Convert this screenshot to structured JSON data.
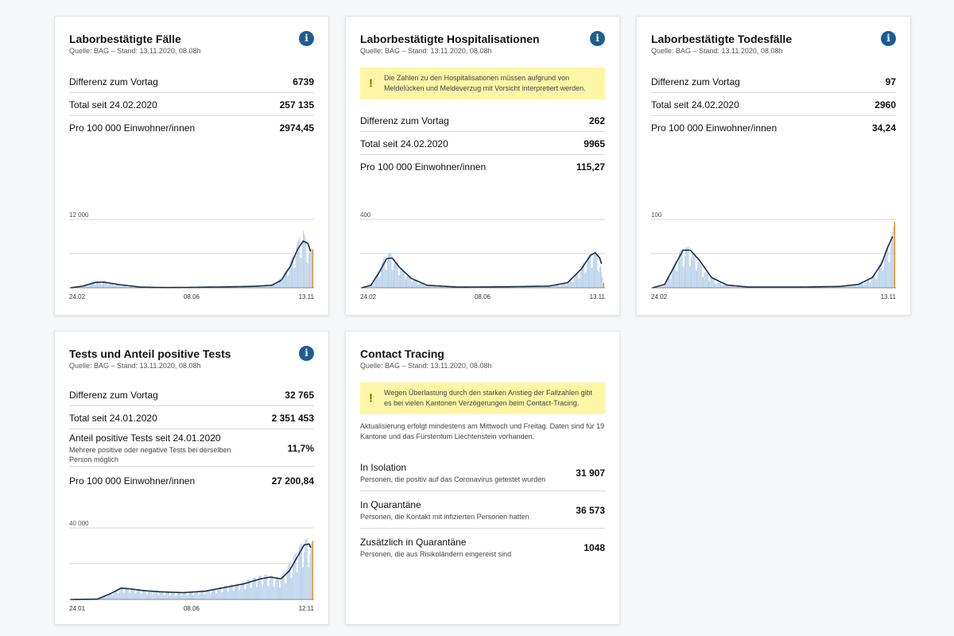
{
  "colors": {
    "bar": "#b9d1ea",
    "line": "#1c2e45",
    "latest": "#e89324",
    "info": "#1d5c91",
    "note": "#fdf6a6"
  },
  "cards": [
    {
      "title": "Laborbestätigte Fälle",
      "source": "Quelle: BAG – Stand: 13.11.2020, 08.08h",
      "has_info": true,
      "rows": [
        {
          "label": "Differenz zum Vortag",
          "value": "6739"
        },
        {
          "label": "Total seit 24.02.2020",
          "value": "257 135"
        },
        {
          "label": "Pro 100 000 Einwohner/innen",
          "value": "2974,45"
        }
      ]
    },
    {
      "title": "Laborbestätigte Hospitalisationen",
      "source": "Quelle: BAG – Stand: 13.11.2020, 08.08h",
      "has_info": true,
      "note": "Die Zahlen zu den Hospitalisationen müssen aufgrund von Meldelücken und Meldeverzug mit Vorsicht interpretiert werden.",
      "rows": [
        {
          "label": "Differenz zum Vortag",
          "value": "262"
        },
        {
          "label": "Total seit 24.02.2020",
          "value": "9965"
        },
        {
          "label": "Pro 100 000 Einwohner/innen",
          "value": "115,27"
        }
      ]
    },
    {
      "title": "Laborbestätigte Todesfälle",
      "source": "Quelle: BAG – Stand: 13.11.2020, 08.08h",
      "has_info": true,
      "rows": [
        {
          "label": "Differenz zum Vortag",
          "value": "97"
        },
        {
          "label": "Total seit 24.02.2020",
          "value": "2960"
        },
        {
          "label": "Pro 100 000 Einwohner/innen",
          "value": "34,24"
        }
      ]
    },
    {
      "title": "Tests und Anteil positive Tests",
      "source": "Quelle: BAG – Stand: 13.11.2020, 08.08h",
      "has_info": true,
      "rows": [
        {
          "label": "Differenz zum Vortag",
          "value": "32 765"
        },
        {
          "label": "Total seit 24.01.2020",
          "value": "2 351 453"
        },
        {
          "label": "Anteil positive Tests seit 24.01.2020",
          "sub": "Mehrere positive oder negative Tests bei derselben Person möglich",
          "value": "11,7%"
        },
        {
          "label": "Pro 100 000 Einwohner/innen",
          "value": "27 200,84"
        }
      ]
    },
    {
      "title": "Contact Tracing",
      "source": "Quelle: BAG – Stand: 13.11.2020, 08.08h",
      "has_info": false,
      "note": "Wegen Überlastung durch den starken Anstieg der Fallzahlen gibt es bei vielen Kantonen Verzögerungen beim Contact-Tracing.",
      "text": "Aktualisierung erfolgt mindestens am Mittwoch und Freitag. Daten sind für 19 Kantone und das Fürstentum Liechtenstein vorhanden.",
      "rows": [
        {
          "label": "In Isolation",
          "sub": "Personen, die positiv auf das Coronavirus getestet wurden",
          "value": "31 907"
        },
        {
          "label": "In Quarantäne",
          "sub": "Personen, die Kontakt mit infizierten Personen hatten",
          "value": "36 573"
        },
        {
          "label": "Zusätzlich in Quarantäne",
          "sub": "Personen, die aus Risikoländern eingereist sind",
          "value": "1048"
        }
      ]
    }
  ],
  "chart_data": [
    {
      "type": "bar",
      "chart": "cases",
      "ytick": "12 000",
      "ylim": [
        0,
        12000
      ],
      "xticks": [
        "24.02",
        "08.06",
        "13.11"
      ],
      "start": "2020-02-24",
      "end": "2020-11-13",
      "daily_anchors": [
        [
          "2020-02-24",
          0
        ],
        [
          "2020-03-06",
          300
        ],
        [
          "2020-03-20",
          1100
        ],
        [
          "2020-03-27",
          1200
        ],
        [
          "2020-04-10",
          700
        ],
        [
          "2020-05-01",
          150
        ],
        [
          "2020-06-08",
          30
        ],
        [
          "2020-07-01",
          80
        ],
        [
          "2020-08-01",
          150
        ],
        [
          "2020-09-01",
          250
        ],
        [
          "2020-09-25",
          400
        ],
        [
          "2020-10-05",
          1000
        ],
        [
          "2020-10-15",
          3000
        ],
        [
          "2020-10-25",
          6500
        ],
        [
          "2020-10-31",
          9500
        ],
        [
          "2020-11-03",
          10000
        ],
        [
          "2020-11-06",
          8500
        ],
        [
          "2020-11-10",
          7000
        ],
        [
          "2020-11-13",
          6739
        ]
      ],
      "average_anchors": [
        [
          "2020-02-24",
          0
        ],
        [
          "2020-03-08",
          300
        ],
        [
          "2020-03-22",
          950
        ],
        [
          "2020-03-31",
          1000
        ],
        [
          "2020-04-15",
          600
        ],
        [
          "2020-05-10",
          120
        ],
        [
          "2020-06-08",
          40
        ],
        [
          "2020-07-10",
          90
        ],
        [
          "2020-08-10",
          160
        ],
        [
          "2020-09-10",
          260
        ],
        [
          "2020-09-30",
          450
        ],
        [
          "2020-10-10",
          1300
        ],
        [
          "2020-10-20",
          3800
        ],
        [
          "2020-10-28",
          6800
        ],
        [
          "2020-11-03",
          8200
        ],
        [
          "2020-11-08",
          7800
        ],
        [
          "2020-11-11",
          6400
        ]
      ]
    },
    {
      "type": "bar",
      "chart": "hospitalisations",
      "ytick": "400",
      "ylim": [
        0,
        400
      ],
      "xticks": [
        "24.02",
        "08.06",
        "13.11"
      ],
      "start": "2020-02-24",
      "end": "2020-11-13",
      "daily_anchors": [
        [
          "2020-02-24",
          0
        ],
        [
          "2020-03-05",
          20
        ],
        [
          "2020-03-14",
          110
        ],
        [
          "2020-03-20",
          185
        ],
        [
          "2020-03-26",
          210
        ],
        [
          "2020-04-02",
          150
        ],
        [
          "2020-04-15",
          70
        ],
        [
          "2020-05-01",
          20
        ],
        [
          "2020-06-08",
          4
        ],
        [
          "2020-08-01",
          6
        ],
        [
          "2020-09-15",
          10
        ],
        [
          "2020-10-01",
          20
        ],
        [
          "2020-10-15",
          80
        ],
        [
          "2020-10-25",
          170
        ],
        [
          "2020-11-02",
          220
        ],
        [
          "2020-11-06",
          200
        ],
        [
          "2020-11-10",
          130
        ],
        [
          "2020-11-13",
          30
        ]
      ],
      "average_anchors": [
        [
          "2020-02-24",
          0
        ],
        [
          "2020-03-05",
          15
        ],
        [
          "2020-03-14",
          90
        ],
        [
          "2020-03-22",
          170
        ],
        [
          "2020-03-28",
          175
        ],
        [
          "2020-04-05",
          120
        ],
        [
          "2020-04-18",
          55
        ],
        [
          "2020-05-05",
          15
        ],
        [
          "2020-06-08",
          4
        ],
        [
          "2020-08-01",
          6
        ],
        [
          "2020-09-15",
          10
        ],
        [
          "2020-10-05",
          30
        ],
        [
          "2020-10-20",
          110
        ],
        [
          "2020-10-30",
          190
        ],
        [
          "2020-11-04",
          205
        ],
        [
          "2020-11-09",
          175
        ],
        [
          "2020-11-11",
          140
        ]
      ]
    },
    {
      "type": "bar",
      "chart": "deaths",
      "ytick": "100",
      "ylim": [
        0,
        100
      ],
      "xticks": [
        "24.02",
        "13.11"
      ],
      "start": "2020-02-24",
      "end": "2020-11-13",
      "daily_anchors": [
        [
          "2020-02-24",
          0
        ],
        [
          "2020-03-05",
          2
        ],
        [
          "2020-03-15",
          25
        ],
        [
          "2020-03-25",
          55
        ],
        [
          "2020-04-03",
          60
        ],
        [
          "2020-04-10",
          50
        ],
        [
          "2020-04-20",
          25
        ],
        [
          "2020-05-05",
          8
        ],
        [
          "2020-05-25",
          2
        ],
        [
          "2020-06-08",
          1
        ],
        [
          "2020-08-01",
          1
        ],
        [
          "2020-09-15",
          2
        ],
        [
          "2020-10-01",
          4
        ],
        [
          "2020-10-15",
          10
        ],
        [
          "2020-10-25",
          25
        ],
        [
          "2020-11-03",
          55
        ],
        [
          "2020-11-10",
          75
        ],
        [
          "2020-11-13",
          97
        ]
      ],
      "average_anchors": [
        [
          "2020-02-24",
          0
        ],
        [
          "2020-03-08",
          5
        ],
        [
          "2020-03-18",
          30
        ],
        [
          "2020-03-28",
          55
        ],
        [
          "2020-04-05",
          55
        ],
        [
          "2020-04-15",
          40
        ],
        [
          "2020-04-28",
          15
        ],
        [
          "2020-05-15",
          4
        ],
        [
          "2020-06-08",
          1
        ],
        [
          "2020-08-01",
          1
        ],
        [
          "2020-09-15",
          2
        ],
        [
          "2020-10-05",
          5
        ],
        [
          "2020-10-20",
          15
        ],
        [
          "2020-10-30",
          35
        ],
        [
          "2020-11-06",
          60
        ],
        [
          "2020-11-11",
          75
        ]
      ]
    },
    {
      "type": "bar",
      "chart": "tests",
      "ytick": "40 000",
      "ylim": [
        0,
        40000
      ],
      "xticks": [
        "24.01",
        "08.06",
        "12.11"
      ],
      "start": "2020-01-24",
      "end": "2020-11-12",
      "daily_anchors": [
        [
          "2020-01-24",
          0
        ],
        [
          "2020-02-25",
          200
        ],
        [
          "2020-03-10",
          3000
        ],
        [
          "2020-03-25",
          7000
        ],
        [
          "2020-04-05",
          6500
        ],
        [
          "2020-04-20",
          5500
        ],
        [
          "2020-05-01",
          5000
        ],
        [
          "2020-05-15",
          4500
        ],
        [
          "2020-06-08",
          4000
        ],
        [
          "2020-07-01",
          5000
        ],
        [
          "2020-07-15",
          6000
        ],
        [
          "2020-08-01",
          8000
        ],
        [
          "2020-08-15",
          9000
        ],
        [
          "2020-09-01",
          12000
        ],
        [
          "2020-09-15",
          14000
        ],
        [
          "2020-09-25",
          13000
        ],
        [
          "2020-10-05",
          12000
        ],
        [
          "2020-10-15",
          20000
        ],
        [
          "2020-10-25",
          28000
        ],
        [
          "2020-11-01",
          33000
        ],
        [
          "2020-11-06",
          34000
        ],
        [
          "2020-11-10",
          31000
        ],
        [
          "2020-11-12",
          32765
        ]
      ],
      "average_anchors": [
        [
          "2020-01-24",
          0
        ],
        [
          "2020-02-25",
          150
        ],
        [
          "2020-03-12",
          3200
        ],
        [
          "2020-03-25",
          6300
        ],
        [
          "2020-04-05",
          5900
        ],
        [
          "2020-04-20",
          5000
        ],
        [
          "2020-05-10",
          4300
        ],
        [
          "2020-06-08",
          3800
        ],
        [
          "2020-07-05",
          4600
        ],
        [
          "2020-08-01",
          7000
        ],
        [
          "2020-08-20",
          8600
        ],
        [
          "2020-09-10",
          11500
        ],
        [
          "2020-09-22",
          12500
        ],
        [
          "2020-10-05",
          11500
        ],
        [
          "2020-10-15",
          16000
        ],
        [
          "2020-10-25",
          24000
        ],
        [
          "2020-11-02",
          30500
        ],
        [
          "2020-11-08",
          31000
        ],
        [
          "2020-11-10",
          29000
        ]
      ]
    }
  ]
}
